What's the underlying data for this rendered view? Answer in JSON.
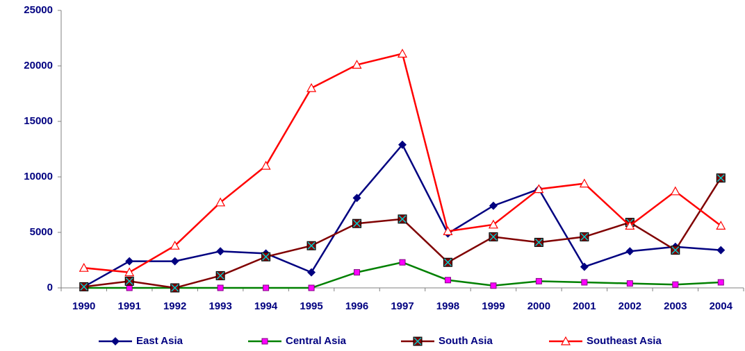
{
  "chart_data": {
    "type": "line",
    "categories": [
      "1990",
      "1991",
      "1992",
      "1993",
      "1994",
      "1995",
      "1996",
      "1997",
      "1998",
      "1999",
      "2000",
      "2001",
      "2002",
      "2003",
      "2004"
    ],
    "series": [
      {
        "name": "East Asia",
        "color": "#000080",
        "marker": "diamond",
        "marker_color": "#000080",
        "values": [
          100,
          2400,
          2400,
          3300,
          3100,
          1400,
          8100,
          12900,
          4900,
          7400,
          8900,
          1900,
          3300,
          3700,
          3400
        ]
      },
      {
        "name": "Central Asia",
        "color": "#008000",
        "marker": "square",
        "marker_color": "#ff00ff",
        "values": [
          0,
          0,
          0,
          0,
          0,
          0,
          1400,
          2300,
          700,
          200,
          600,
          500,
          400,
          300,
          500
        ]
      },
      {
        "name": "South Asia",
        "color": "#800000",
        "marker": "xsquare",
        "marker_color": "#00cccc",
        "values": [
          100,
          600,
          0,
          1100,
          2800,
          3800,
          5800,
          6200,
          2300,
          4600,
          4100,
          4600,
          5900,
          3400,
          9900
        ]
      },
      {
        "name": "Southeast Asia",
        "color": "#ff0000",
        "marker": "triangle",
        "marker_color": "#ff0000",
        "values": [
          1800,
          1400,
          3800,
          7700,
          11000,
          18000,
          20100,
          21100,
          5100,
          5700,
          8900,
          9400,
          5600,
          8700,
          5600
        ]
      }
    ],
    "ylim": [
      0,
      25000
    ],
    "yticks": [
      0,
      5000,
      10000,
      15000,
      20000,
      25000
    ],
    "grid": false,
    "legend": "bottom"
  }
}
